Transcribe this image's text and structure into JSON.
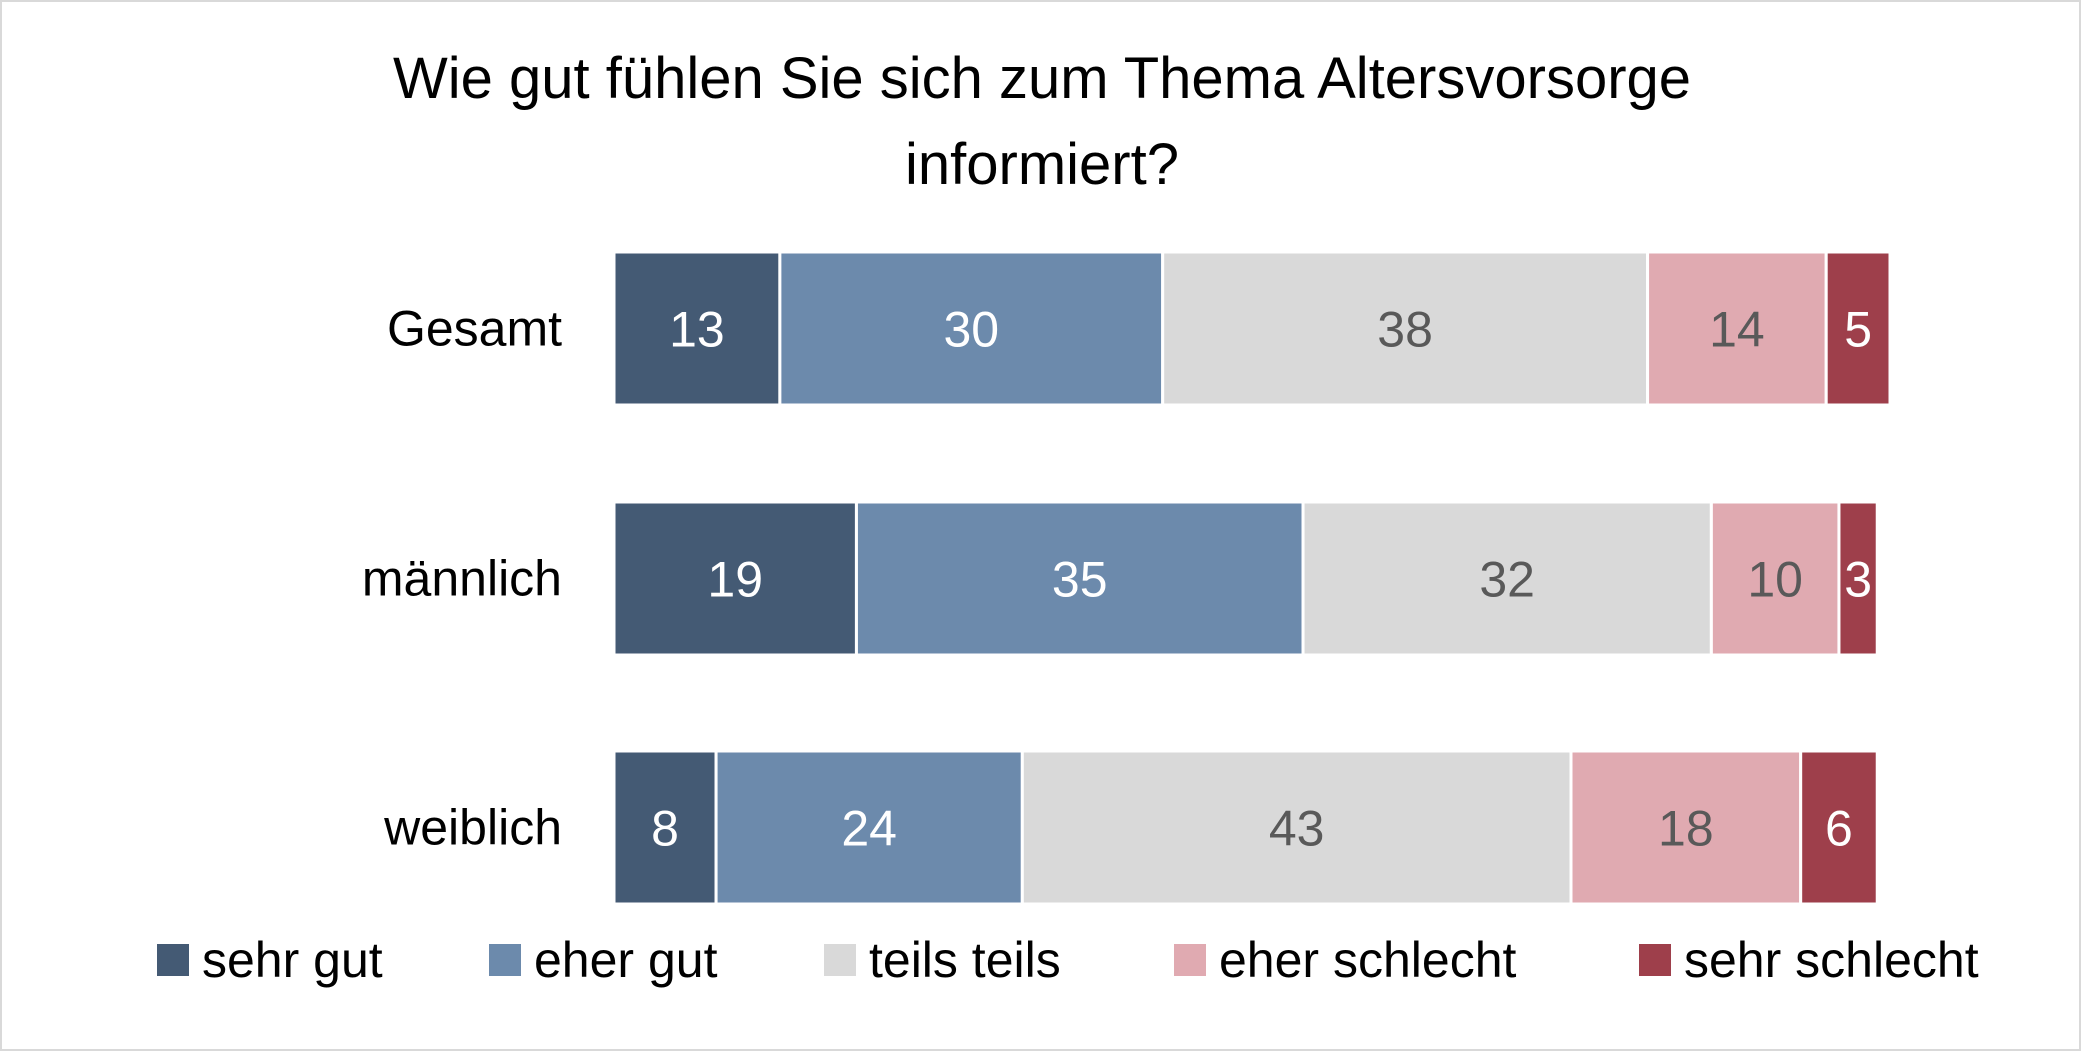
{
  "chart_data": {
    "type": "bar",
    "orientation": "horizontal",
    "stacked": true,
    "title_lines": [
      "Wie gut fühlen Sie sich zum Thema Altersvorsorge",
      "informiert?"
    ],
    "xlabel": "",
    "ylabel": "",
    "xlim": [
      0,
      100
    ],
    "grid": false,
    "legend_position": "bottom",
    "categories": [
      "Gesamt",
      "männlich",
      "weiblich"
    ],
    "series": [
      {
        "name": "sehr gut",
        "color": "#445a74",
        "label_color": "#ffffff",
        "values": [
          13,
          19,
          8
        ]
      },
      {
        "name": "eher gut",
        "color": "#6c8aac",
        "label_color": "#ffffff",
        "values": [
          30,
          35,
          24
        ]
      },
      {
        "name": "teils teils",
        "color": "#d9d9d9",
        "label_color": "#595959",
        "values": [
          38,
          32,
          43
        ]
      },
      {
        "name": "eher schlecht",
        "color": "#e0aab1",
        "label_color": "#595959",
        "values": [
          14,
          10,
          18
        ]
      },
      {
        "name": "sehr schlecht",
        "color": "#9e3f4b",
        "label_color": "#ffffff",
        "values": [
          5,
          3,
          6
        ]
      }
    ]
  }
}
